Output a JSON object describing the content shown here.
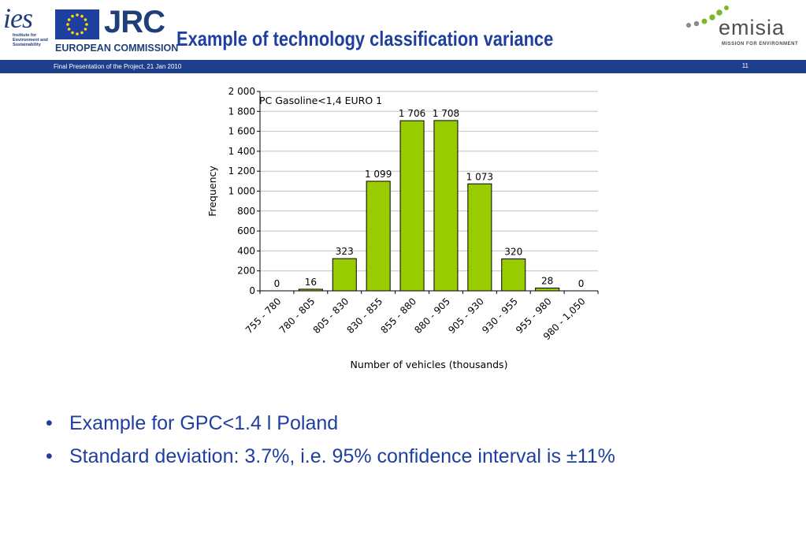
{
  "header": {
    "ies_text": "ies",
    "ies_sub": "Institute for Environment and Sustainability",
    "jrc": "JRC",
    "ec": "EUROPEAN COMMISSION",
    "title": "Example of technology classification variance",
    "emisia_name": "emisia",
    "emisia_tag": "MISSION FOR ENVIRONMENT"
  },
  "banner": {
    "left_text": "Final Presentation of the Project, 21 Jan 2010",
    "page_number": "11"
  },
  "colors": {
    "brand_blue": "#1e3f8c",
    "title_blue": "#1f3f9f",
    "bar_fill": "#99cc00",
    "emisia_green": "#7ab929"
  },
  "chart_data": {
    "type": "bar",
    "title": "PC Gasoline<1,4 EURO 1",
    "categories": [
      "755 - 780",
      "780 - 805",
      "805 - 830",
      "830 - 855",
      "855 - 880",
      "880 - 905",
      "905 - 930",
      "930 - 955",
      "955 - 980",
      "980 - 1,050"
    ],
    "values": [
      0,
      16,
      323,
      1099,
      1706,
      1708,
      1073,
      320,
      28,
      0
    ],
    "value_labels": [
      "0",
      "16",
      "323",
      "1 099",
      "1 706",
      "1 708",
      "1 073",
      "320",
      "28",
      "0"
    ],
    "xlabel": "Number of vehicles (thousands)",
    "ylabel": "Frequency",
    "ylim": [
      0,
      2000
    ],
    "yticks": [
      0,
      200,
      400,
      600,
      800,
      1000,
      1200,
      1400,
      1600,
      1800,
      2000
    ],
    "ytick_labels": [
      "0",
      "200",
      "400",
      "600",
      "800",
      "1 000",
      "1 200",
      "1 400",
      "1 600",
      "1 800",
      "2 000"
    ],
    "grid": true,
    "legend": "none"
  },
  "bullets": [
    "Example for GPC<1.4 l Poland",
    "Standard deviation: 3.7%, i.e. 95% confidence interval is ±11%"
  ],
  "bullet_symbol": "•"
}
